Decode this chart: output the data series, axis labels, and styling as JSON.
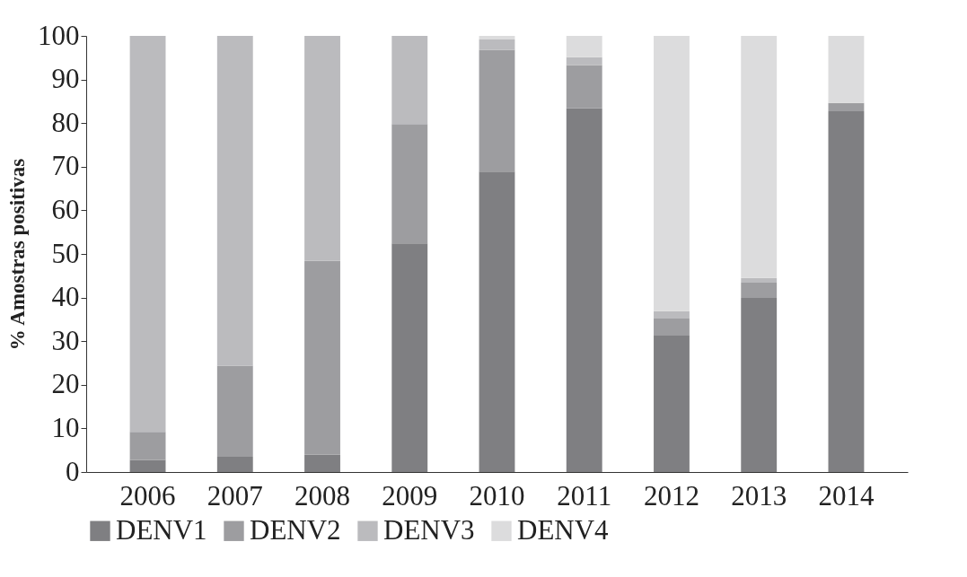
{
  "chart_data": {
    "type": "bar",
    "stacked": true,
    "ylabel": "% Amostras positivas",
    "categories": [
      "2006",
      "2007",
      "2008",
      "2009",
      "2010",
      "2011",
      "2012",
      "2013",
      "2014"
    ],
    "series": [
      {
        "name": "DENV1",
        "color": "#7f7f82",
        "values": [
          2.8,
          3.5,
          4.0,
          52.4,
          68.9,
          83.4,
          31.3,
          39.9,
          82.7
        ]
      },
      {
        "name": "DENV2",
        "color": "#9d9da0",
        "values": [
          6.4,
          20.9,
          44.4,
          27.4,
          27.9,
          9.9,
          3.9,
          3.5,
          1.9
        ]
      },
      {
        "name": "DENV3",
        "color": "#bbbbbe",
        "values": [
          90.8,
          75.6,
          51.6,
          20.2,
          2.4,
          1.8,
          1.7,
          1.1,
          0
        ]
      },
      {
        "name": "DENV4",
        "color": "#dcdcdd",
        "values": [
          0,
          0,
          0,
          0,
          0.8,
          4.9,
          63.1,
          55.5,
          15.4
        ]
      }
    ],
    "ylim": [
      0,
      100
    ],
    "yticks": [
      0,
      10,
      20,
      30,
      40,
      50,
      60,
      70,
      80,
      90,
      100
    ],
    "grid": false,
    "legend": "bottom"
  }
}
